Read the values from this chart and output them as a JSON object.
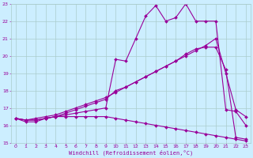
{
  "xlabel": "Windchill (Refroidissement éolien,°C)",
  "bg_color": "#cceeff",
  "grid_color": "#aacccc",
  "line_color": "#990099",
  "xlim": [
    -0.5,
    23.5
  ],
  "ylim": [
    15,
    23
  ],
  "yticks": [
    15,
    16,
    17,
    18,
    19,
    20,
    21,
    22,
    23
  ],
  "xticks": [
    0,
    1,
    2,
    3,
    4,
    5,
    6,
    7,
    8,
    9,
    10,
    11,
    12,
    13,
    14,
    15,
    16,
    17,
    18,
    19,
    20,
    21,
    22,
    23
  ],
  "series": [
    {
      "x": [
        0,
        1,
        2,
        3,
        4,
        5,
        6,
        7,
        8,
        9,
        10,
        11,
        12,
        13,
        14,
        15,
        16,
        17,
        18,
        19,
        20,
        21,
        22,
        23
      ],
      "y": [
        16.4,
        16.2,
        16.2,
        16.4,
        16.5,
        16.6,
        16.7,
        16.8,
        16.9,
        17.0,
        19.8,
        19.7,
        21.0,
        22.3,
        22.9,
        22.0,
        22.2,
        23.0,
        22.0,
        22.0,
        22.0,
        16.9,
        16.8,
        16.0
      ]
    },
    {
      "x": [
        0,
        1,
        2,
        3,
        4,
        5,
        6,
        7,
        8,
        9,
        10,
        11,
        12,
        13,
        14,
        15,
        16,
        17,
        18,
        19,
        20,
        21,
        22,
        23
      ],
      "y": [
        16.4,
        16.3,
        16.3,
        16.4,
        16.5,
        16.7,
        16.9,
        17.1,
        17.3,
        17.5,
        18.0,
        18.2,
        18.5,
        18.8,
        19.1,
        19.4,
        19.7,
        20.1,
        20.4,
        20.5,
        20.5,
        19.2,
        15.3,
        15.2
      ]
    },
    {
      "x": [
        0,
        1,
        2,
        3,
        4,
        5,
        6,
        7,
        8,
        9,
        10,
        11,
        12,
        13,
        14,
        15,
        16,
        17,
        18,
        19,
        20,
        21,
        22,
        23
      ],
      "y": [
        16.4,
        16.3,
        16.4,
        16.5,
        16.6,
        16.8,
        17.0,
        17.2,
        17.4,
        17.6,
        17.9,
        18.2,
        18.5,
        18.8,
        19.1,
        19.4,
        19.7,
        20.0,
        20.3,
        20.6,
        21.0,
        19.0,
        16.9,
        16.5
      ]
    },
    {
      "x": [
        0,
        1,
        2,
        3,
        4,
        5,
        6,
        7,
        8,
        9,
        10,
        11,
        12,
        13,
        14,
        15,
        16,
        17,
        18,
        19,
        20,
        21,
        22,
        23
      ],
      "y": [
        16.4,
        16.3,
        16.3,
        16.4,
        16.5,
        16.5,
        16.5,
        16.5,
        16.5,
        16.5,
        16.4,
        16.3,
        16.2,
        16.1,
        16.0,
        15.9,
        15.8,
        15.7,
        15.6,
        15.5,
        15.4,
        15.3,
        15.2,
        15.1
      ]
    }
  ],
  "markersize": 2,
  "linewidth": 0.8
}
